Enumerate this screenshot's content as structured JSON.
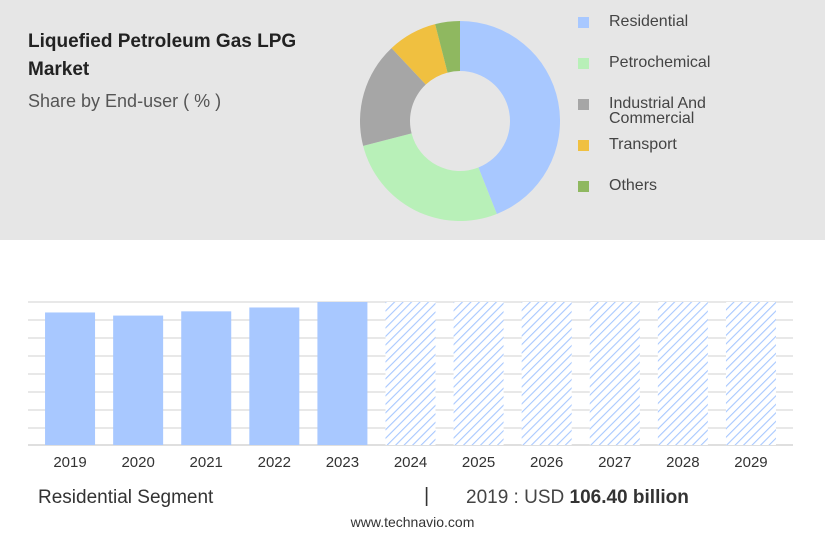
{
  "header": {
    "title": "Liquefied Petroleum Gas LPG Market",
    "subtitle": "Share by End-user ( % )"
  },
  "chart_data": [
    {
      "type": "pie",
      "donut": true,
      "categories": [
        "Residential",
        "Petrochemical",
        "Industrial And\nCommercial",
        "Transport",
        "Others"
      ],
      "values": [
        44,
        27,
        17,
        8,
        4
      ],
      "colors": [
        "#a8c8ff",
        "#b8f0b8",
        "#a6a6a6",
        "#f0c040",
        "#8fb860"
      ],
      "legend_position": "right"
    },
    {
      "type": "bar",
      "categories": [
        "2019",
        "2020",
        "2021",
        "2022",
        "2023",
        "2024",
        "2025",
        "2026",
        "2027",
        "2028",
        "2029"
      ],
      "values": [
        106.4,
        103.9,
        107.3,
        110.4,
        114.8,
        114.8,
        114.8,
        114.8,
        114.8,
        114.8,
        114.8
      ],
      "forecast_from": "2024",
      "ylim": [
        0,
        114.8
      ],
      "grid": true,
      "color": "#a8c8ff"
    }
  ],
  "footer": {
    "segment_label": "Residential Segment",
    "separator": "|",
    "value_prefix": "2019 : USD",
    "value": "106.40 billion",
    "website": "www.technavio.com"
  }
}
